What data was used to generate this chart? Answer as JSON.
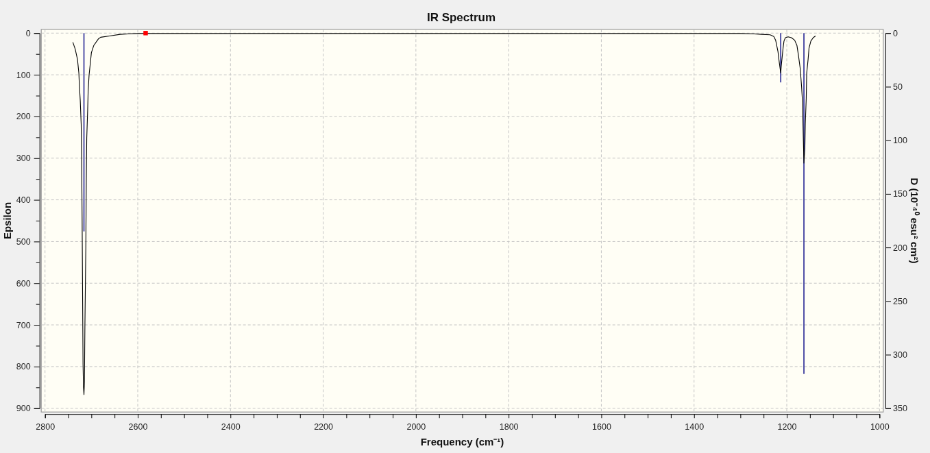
{
  "chart_data": {
    "type": "line",
    "title": "IR Spectrum",
    "xlabel": "Frequency (cm⁻¹)",
    "ylabel": "Epsilon",
    "y2label": "D (10⁻⁴⁰ esu² cm²)",
    "xlim": [
      2800,
      1000
    ],
    "xticks": [
      2800,
      {
        "value": 2750,
        "label": null
      },
      {
        "value": 2700,
        "label": null
      },
      {
        "value": 2650,
        "label": null
      },
      2600,
      {
        "value": 2550,
        "label": null
      },
      {
        "value": 2500,
        "label": null
      },
      {
        "value": 2450,
        "label": null
      },
      2400,
      {
        "value": 2350,
        "label": null
      },
      {
        "value": 2300,
        "label": null
      },
      {
        "value": 2250,
        "label": null
      },
      2200,
      {
        "value": 2150,
        "label": null
      },
      {
        "value": 2100,
        "label": null
      },
      {
        "value": 2050,
        "label": null
      },
      2000,
      {
        "value": 1950,
        "label": null
      },
      {
        "value": 1900,
        "label": null
      },
      {
        "value": 1850,
        "label": null
      },
      1800,
      {
        "value": 1750,
        "label": null
      },
      {
        "value": 1700,
        "label": null
      },
      {
        "value": 1650,
        "label": null
      },
      1600,
      {
        "value": 1550,
        "label": null
      },
      {
        "value": 1500,
        "label": null
      },
      {
        "value": 1450,
        "label": null
      },
      1400,
      {
        "value": 1350,
        "label": null
      },
      {
        "value": 1300,
        "label": null
      },
      {
        "value": 1250,
        "label": null
      },
      1200,
      {
        "value": 1150,
        "label": null
      },
      {
        "value": 1100,
        "label": null
      },
      {
        "value": 1050,
        "label": null
      },
      1000
    ],
    "ylim": [
      900,
      0
    ],
    "yticks": [
      0,
      {
        "value": 50,
        "label": null
      },
      100,
      {
        "value": 150,
        "label": null
      },
      200,
      {
        "value": 250,
        "label": null
      },
      300,
      {
        "value": 350,
        "label": null
      },
      400,
      {
        "value": 450,
        "label": null
      },
      500,
      {
        "value": 550,
        "label": null
      },
      600,
      {
        "value": 650,
        "label": null
      },
      700,
      {
        "value": 750,
        "label": null
      },
      800,
      {
        "value": 850,
        "label": null
      },
      900
    ],
    "y2lim": [
      350,
      0
    ],
    "y2ticks": [
      0,
      50,
      100,
      150,
      200,
      250,
      300,
      350
    ],
    "grid": true,
    "series": [
      {
        "type": "bar",
        "axis": "y2",
        "color": "#14148c",
        "x": [
          2716,
          1213,
          1163
        ],
        "values": [
          185,
          46,
          318
        ]
      },
      {
        "color": "#000000",
        "x": [
          2740,
          2735,
          2730,
          2727,
          2726,
          2724,
          2722,
          2721,
          2720,
          2719,
          2718,
          2717,
          2716,
          2715,
          2714,
          2712,
          2711,
          2710,
          2708,
          2707,
          2705,
          2702,
          2700,
          2695,
          2685,
          2680,
          2661,
          2638,
          2621,
          2600,
          1300,
          1270,
          1254,
          1236,
          1228,
          1224,
          1222,
          1219,
          1217,
          1215,
          1213,
          1212,
          1210,
          1208,
          1206,
          1203,
          1197,
          1190,
          1183,
          1178,
          1175,
          1171,
          1168,
          1166,
          1165,
          1163,
          1161,
          1160,
          1158,
          1157,
          1154,
          1152,
          1148,
          1143,
          1138
        ],
        "values": [
          22,
          38,
          63,
          96,
          123,
          162,
          219,
          307,
          441,
          622,
          795,
          850,
          867,
          836,
          706,
          515,
          359,
          252,
          184,
          140,
          101,
          69,
          47,
          30,
          14,
          10,
          7,
          3,
          2,
          1,
          1,
          2,
          3,
          4,
          8,
          17,
          28,
          44,
          63,
          80,
          96,
          80,
          58,
          36,
          19,
          11,
          9,
          11,
          17,
          30,
          52,
          85,
          129,
          167,
          222,
          312,
          277,
          217,
          156,
          96,
          63,
          36,
          19,
          11,
          7
        ]
      },
      {
        "type": "scatter",
        "color": "#ff0000",
        "marker": "square",
        "x": [
          2583
        ],
        "values": [
          0
        ]
      }
    ]
  }
}
